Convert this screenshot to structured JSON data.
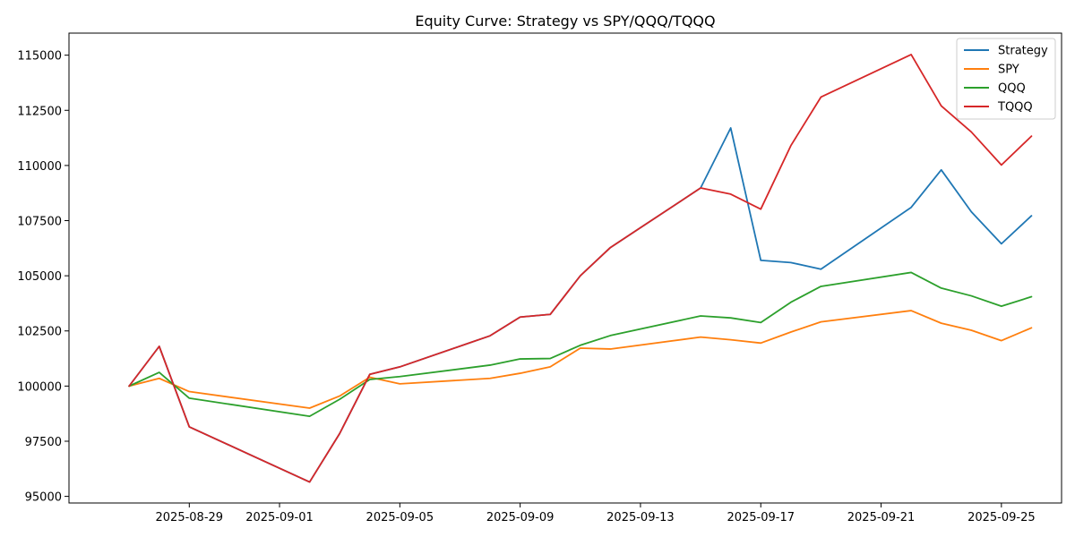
{
  "chart_data": {
    "type": "line",
    "title": "Equity Curve: Strategy vs SPY/QQQ/TQQQ",
    "xlabel": "",
    "ylabel": "",
    "x": [
      "2025-08-27",
      "2025-08-28",
      "2025-08-29",
      "2025-09-02",
      "2025-09-03",
      "2025-09-04",
      "2025-09-05",
      "2025-09-08",
      "2025-09-09",
      "2025-09-10",
      "2025-09-11",
      "2025-09-12",
      "2025-09-15",
      "2025-09-16",
      "2025-09-17",
      "2025-09-18",
      "2025-09-19",
      "2025-09-22",
      "2025-09-23",
      "2025-09-24",
      "2025-09-25",
      "2025-09-26"
    ],
    "series": [
      {
        "name": "Strategy",
        "color": "#1f77b4",
        "values": [
          100000,
          101800,
          98150,
          95650,
          97850,
          100530,
          100870,
          102280,
          103130,
          103250,
          105000,
          106280,
          108980,
          111700,
          105700,
          105600,
          105300,
          108100,
          109800,
          107900,
          106450,
          107720
        ]
      },
      {
        "name": "SPY",
        "color": "#ff7f0e",
        "values": [
          100000,
          100350,
          99750,
          99000,
          99550,
          100400,
          100100,
          100350,
          100580,
          100870,
          101720,
          101680,
          102220,
          102100,
          101950,
          102450,
          102910,
          103420,
          102850,
          102530,
          102060,
          102640
        ]
      },
      {
        "name": "QQQ",
        "color": "#2ca02c",
        "values": [
          100000,
          100620,
          99450,
          98630,
          99400,
          100300,
          100430,
          100950,
          101230,
          101250,
          101850,
          102290,
          103180,
          103090,
          102880,
          103800,
          104520,
          105150,
          104440,
          104090,
          103620,
          104050
        ]
      },
      {
        "name": "TQQQ",
        "color": "#d62728",
        "values": [
          100000,
          101800,
          98150,
          95650,
          97850,
          100530,
          100870,
          102280,
          103130,
          103250,
          105000,
          106280,
          108980,
          108700,
          108020,
          110900,
          113100,
          115030,
          112700,
          111520,
          110020,
          111330
        ]
      }
    ],
    "xticks": [
      "2025-08-29",
      "2025-09-01",
      "2025-09-05",
      "2025-09-09",
      "2025-09-13",
      "2025-09-17",
      "2025-09-21",
      "2025-09-25"
    ],
    "yticks": [
      95000,
      97500,
      100000,
      102500,
      105000,
      107500,
      110000,
      112500,
      115000
    ],
    "xlim": [
      "2025-08-25",
      "2025-09-27"
    ],
    "ylim": [
      94700,
      116000
    ],
    "grid": false,
    "legend_position": "top-right"
  }
}
